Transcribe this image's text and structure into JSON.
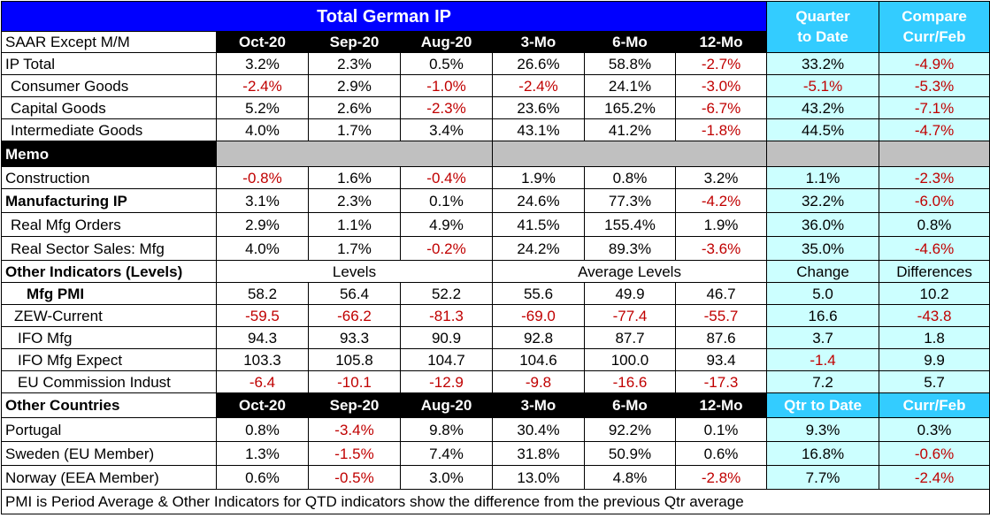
{
  "title": "Total German IP",
  "qtd_header": [
    "Quarter",
    "to Date"
  ],
  "compare_header": [
    "Compare",
    "Curr/Feb"
  ],
  "section1_label": "SAAR Except M/M",
  "periods": [
    "Oct-20",
    "Sep-20",
    "Aug-20",
    "3-Mo",
    "6-Mo",
    "12-Mo"
  ],
  "ip_rows": [
    {
      "label": "IP Total",
      "values": [
        "3.2%",
        "2.3%",
        "0.5%",
        "26.6%",
        "58.8%",
        "-2.7%",
        "33.2%",
        "-4.9%"
      ]
    },
    {
      "label": "Consumer Goods",
      "values": [
        "-2.4%",
        "2.9%",
        "-1.0%",
        "-2.4%",
        "24.1%",
        "-3.0%",
        "-5.1%",
        "-5.3%"
      ]
    },
    {
      "label": "Capital Goods",
      "values": [
        "5.2%",
        "2.6%",
        "-2.3%",
        "23.6%",
        "165.2%",
        "-6.7%",
        "43.2%",
        "-7.1%"
      ]
    },
    {
      "label": "Intermediate Goods",
      "values": [
        "4.0%",
        "1.7%",
        "3.4%",
        "43.1%",
        "41.2%",
        "-1.8%",
        "44.5%",
        "-4.7%"
      ]
    }
  ],
  "memo_label": "Memo",
  "construction": {
    "label": "Construction",
    "values": [
      "-0.8%",
      "1.6%",
      "-0.4%",
      "1.9%",
      "0.8%",
      "3.2%",
      "1.1%",
      "-2.3%"
    ]
  },
  "mfg_rows": [
    {
      "label": "Manufacturing IP",
      "values": [
        "3.1%",
        "2.3%",
        "0.1%",
        "24.6%",
        "77.3%",
        "-4.2%",
        "32.2%",
        "-6.0%"
      ]
    },
    {
      "label": "Real Mfg Orders",
      "values": [
        "2.9%",
        "1.1%",
        "4.9%",
        "41.5%",
        "155.4%",
        "1.9%",
        "36.0%",
        "0.8%"
      ]
    },
    {
      "label": "Real Sector Sales: Mfg",
      "values": [
        "4.0%",
        "1.7%",
        "-0.2%",
        "24.2%",
        "89.3%",
        "-3.6%",
        "35.0%",
        "-4.6%"
      ]
    }
  ],
  "other_ind": {
    "label": "Other Indicators (Levels)",
    "levels": "Levels",
    "avg_levels": "Average Levels",
    "change": "Change",
    "differences": "Differences"
  },
  "ind_rows": [
    {
      "label": "Mfg PMI",
      "values": [
        "58.2",
        "56.4",
        "52.2",
        "55.6",
        "49.9",
        "46.7",
        "5.0",
        "10.2"
      ]
    },
    {
      "label": "ZEW-Current",
      "values": [
        "-59.5",
        "-66.2",
        "-81.3",
        "-69.0",
        "-77.4",
        "-55.7",
        "16.6",
        "-43.8"
      ]
    },
    {
      "label": "IFO Mfg",
      "values": [
        "94.3",
        "93.3",
        "90.9",
        "92.8",
        "87.7",
        "87.6",
        "3.7",
        "1.8"
      ]
    },
    {
      "label": "IFO Mfg Expect",
      "values": [
        "103.3",
        "105.8",
        "104.7",
        "104.6",
        "100.0",
        "93.4",
        "-1.4",
        "9.9"
      ]
    },
    {
      "label": "EU Commission Indust",
      "values": [
        "-6.4",
        "-10.1",
        "-12.9",
        "-9.8",
        "-16.6",
        "-17.3",
        "7.2",
        "5.7"
      ]
    }
  ],
  "other_countries": {
    "label": "Other Countries",
    "qtd": "Qtr to Date",
    "curr": "Curr/Feb"
  },
  "country_rows": [
    {
      "label": "Portugal",
      "values": [
        "0.8%",
        "-3.4%",
        "9.8%",
        "30.4%",
        "92.2%",
        "0.1%",
        "9.3%",
        "0.3%"
      ]
    },
    {
      "label": "Sweden (EU Member)",
      "values": [
        "1.3%",
        "-1.5%",
        "7.4%",
        "31.8%",
        "50.9%",
        "0.6%",
        "16.8%",
        "-0.6%"
      ]
    },
    {
      "label": "Norway (EEA Member)",
      "values": [
        "0.6%",
        "-0.5%",
        "3.0%",
        "13.0%",
        "4.8%",
        "-2.8%",
        "7.7%",
        "-2.4%"
      ]
    }
  ],
  "footnote": "PMI is Period Average & Other Indicators for QTD indicators show the difference from the previous Qtr average",
  "colors": {
    "title_bg": "#0000ff",
    "header_cyan": "#33ccff",
    "cell_cyan": "#ccffff",
    "negative": "#c00000",
    "memo_gray": "#c0c0c0"
  }
}
